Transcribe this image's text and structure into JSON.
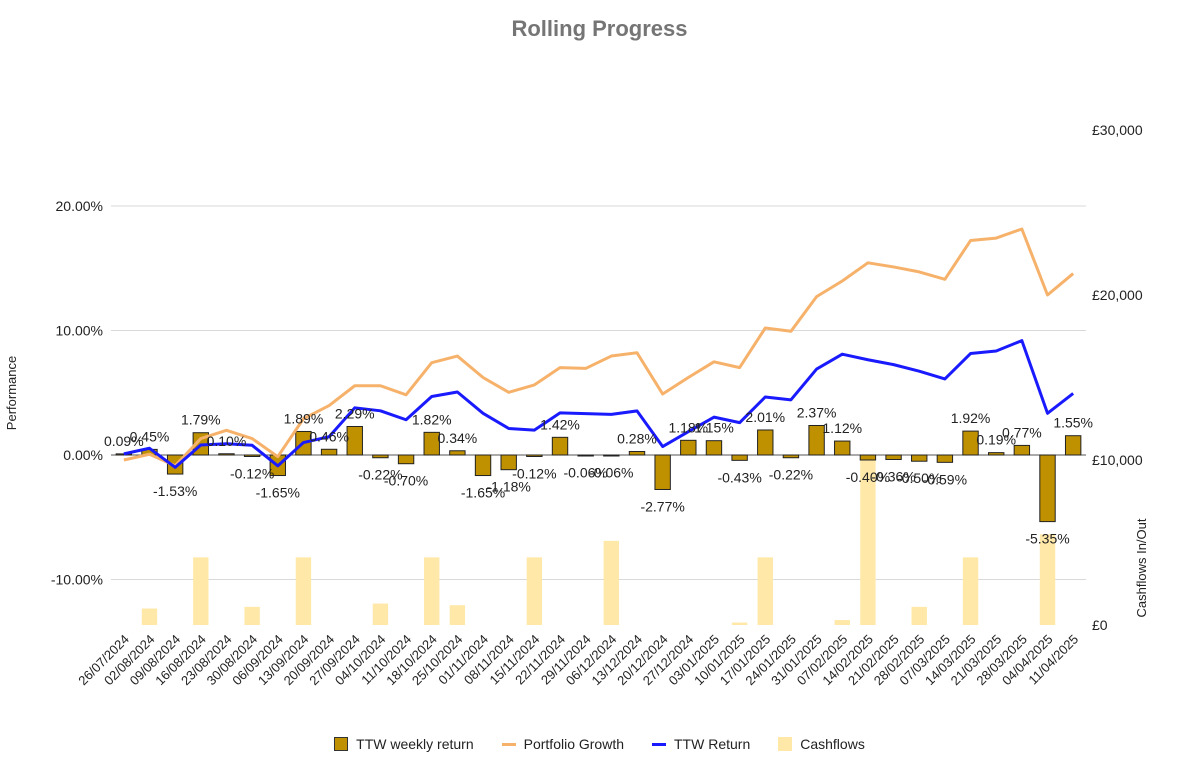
{
  "chart_data": {
    "type": "bar",
    "title": "Rolling Progress",
    "ylabel": "Performance",
    "y2label": "Cashflows In/Out",
    "ylim": [
      -14,
      20
    ],
    "y_ticks": [
      -10,
      0,
      10,
      20
    ],
    "y_tick_labels": [
      "-10.00%",
      "0.00%",
      "10.00%",
      "20.00%"
    ],
    "y2lim": [
      0,
      30000
    ],
    "y2_ticks": [
      0,
      10000,
      20000,
      30000
    ],
    "y2_tick_labels": [
      "£0",
      "£10,000",
      "£20,000",
      "£30,000"
    ],
    "grid": true,
    "legend_position": "bottom",
    "categories": [
      "26/07/2024",
      "02/08/2024",
      "09/08/2024",
      "16/08/2024",
      "23/08/2024",
      "30/08/2024",
      "06/09/2024",
      "13/09/2024",
      "20/09/2024",
      "27/09/2024",
      "04/10/2024",
      "11/10/2024",
      "18/10/2024",
      "25/10/2024",
      "01/11/2024",
      "08/11/2024",
      "15/11/2024",
      "22/11/2024",
      "29/11/2024",
      "06/12/2024",
      "13/12/2024",
      "20/12/2024",
      "27/12/2024",
      "03/01/2025",
      "10/01/2025",
      "17/01/2025",
      "24/01/2025",
      "31/01/2025",
      "07/02/2025",
      "14/02/2025",
      "21/02/2025",
      "28/02/2025",
      "07/03/2025",
      "14/03/2025",
      "21/03/2025",
      "28/03/2025",
      "04/04/2025",
      "11/04/2025"
    ],
    "series": [
      {
        "name": "TTW weekly return",
        "kind": "bar",
        "axis": "left",
        "color": "#bf9000",
        "values": [
          0.09,
          0.45,
          -1.53,
          1.79,
          0.1,
          -0.12,
          -1.65,
          1.89,
          0.46,
          2.29,
          -0.22,
          -0.7,
          1.82,
          0.34,
          -1.65,
          -1.18,
          -0.12,
          1.42,
          -0.06,
          -0.06,
          0.28,
          -2.77,
          1.18,
          1.15,
          -0.43,
          2.01,
          -0.22,
          2.37,
          1.12,
          -0.4,
          -0.36,
          -0.5,
          -0.59,
          1.92,
          0.19,
          0.77,
          -5.35,
          1.55
        ],
        "labels": [
          "0.09%",
          "0.45%",
          "-1.53%",
          "1.79%",
          "0.10%",
          "-0.12%",
          "-1.65%",
          "1.89%",
          "0.46%",
          "2.29%",
          "-0.22%",
          "-0.70%",
          "1.82%",
          "0.34%",
          "-1.65%",
          "-1.18%",
          "-0.12%",
          "1.42%",
          "-0.06%",
          "-0.06%",
          "0.28%",
          "-2.77%",
          "1.18%",
          "1.15%",
          "-0.43%",
          "2.01%",
          "-0.22%",
          "2.37%",
          "1.12%",
          "-0.40%",
          "-0.36%",
          "-0.50%",
          "-0.59%",
          "1.92%",
          "0.19%",
          "0.77%",
          "-5.35%",
          "1.55%"
        ]
      },
      {
        "name": "Portfolio Growth",
        "kind": "line",
        "axis": "right",
        "color": "#f6b26b",
        "values": [
          10000,
          10350,
          9650,
          11300,
          11800,
          11300,
          10200,
          12500,
          13300,
          14500,
          14500,
          13950,
          15900,
          16300,
          15000,
          14100,
          14550,
          15600,
          15550,
          16300,
          16500,
          14000,
          15000,
          15950,
          15600,
          18000,
          17800,
          19900,
          20850,
          21950,
          21700,
          21400,
          20950,
          23300,
          23450,
          24000,
          20000,
          21300
        ]
      },
      {
        "name": "TTW Return",
        "kind": "line",
        "axis": "left",
        "color": "#1a1aff",
        "values": [
          0.09,
          0.54,
          -0.99,
          0.8,
          0.9,
          0.78,
          -0.87,
          1.0,
          1.47,
          3.79,
          3.55,
          2.83,
          4.7,
          5.06,
          3.35,
          2.13,
          2.0,
          3.38,
          3.32,
          3.26,
          3.54,
          0.68,
          1.87,
          3.04,
          2.6,
          4.66,
          4.43,
          6.9,
          8.1,
          7.65,
          7.26,
          6.73,
          6.11,
          8.15,
          8.35,
          9.19,
          3.35,
          4.94
        ]
      },
      {
        "name": "Cashflows",
        "kind": "bar",
        "axis": "right",
        "color": "#ffe8a8",
        "values": [
          0,
          1000,
          0,
          4100,
          0,
          1100,
          0,
          4100,
          0,
          0,
          1300,
          0,
          4100,
          1200,
          0,
          0,
          4100,
          0,
          0,
          5100,
          0,
          0,
          0,
          0,
          150,
          4100,
          0,
          0,
          300,
          10000,
          0,
          1100,
          0,
          4100,
          0,
          0,
          5500,
          0
        ]
      }
    ]
  }
}
